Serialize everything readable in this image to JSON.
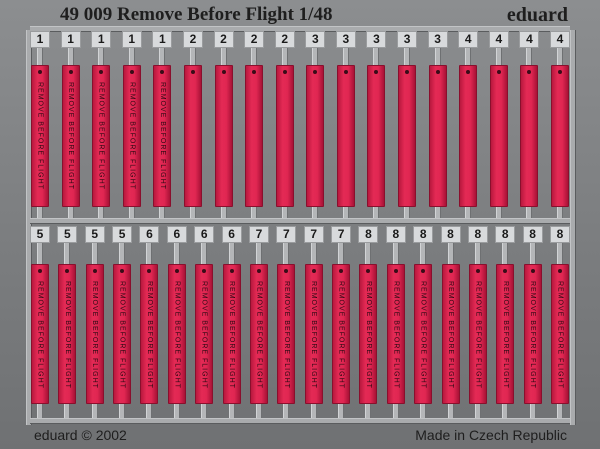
{
  "header": {
    "title": "49 009  Remove Before Flight 1/48",
    "brand": "eduard"
  },
  "footer": {
    "copyright": "eduard © 2002",
    "origin": "Made in Czech Republic"
  },
  "colors": {
    "flag_red": "#e42a55",
    "fret_gray": "#7c7e80"
  },
  "rows": [
    {
      "tags": [
        {
          "number": "1",
          "text": "REMOVE BEFORE FLIGHT"
        },
        {
          "number": "1",
          "text": "REMOVE BEFORE FLIGHT"
        },
        {
          "number": "1",
          "text": "REMOVE BEFORE FLIGHT"
        },
        {
          "number": "1",
          "text": "REMOVE BEFORE FLIGHT"
        },
        {
          "number": "1",
          "text": "REMOVE BEFORE FLIGHT"
        },
        {
          "number": "2",
          "text": ""
        },
        {
          "number": "2",
          "text": ""
        },
        {
          "number": "2",
          "text": ""
        },
        {
          "number": "2",
          "text": ""
        },
        {
          "number": "3",
          "text": ""
        },
        {
          "number": "3",
          "text": ""
        },
        {
          "number": "3",
          "text": ""
        },
        {
          "number": "3",
          "text": ""
        },
        {
          "number": "3",
          "text": ""
        },
        {
          "number": "4",
          "text": ""
        },
        {
          "number": "4",
          "text": ""
        },
        {
          "number": "4",
          "text": ""
        },
        {
          "number": "4",
          "text": ""
        }
      ]
    },
    {
      "tags": [
        {
          "number": "5",
          "text": "REMOVE BEFORE FLIGHT"
        },
        {
          "number": "5",
          "text": "REMOVE BEFORE FLIGHT"
        },
        {
          "number": "5",
          "text": "REMOVE BEFORE FLIGHT"
        },
        {
          "number": "5",
          "text": "REMOVE BEFORE FLIGHT"
        },
        {
          "number": "6",
          "text": "REMOVE BEFORE FLIGHT"
        },
        {
          "number": "6",
          "text": "REMOVE BEFORE FLIGHT"
        },
        {
          "number": "6",
          "text": "REMOVE BEFORE FLIGHT"
        },
        {
          "number": "6",
          "text": "REMOVE BEFORE FLIGHT"
        },
        {
          "number": "7",
          "text": "REMOVE BEFORE FLIGHT"
        },
        {
          "number": "7",
          "text": "REMOVE BEFORE FLIGHT"
        },
        {
          "number": "7",
          "text": "REMOVE BEFORE FLIGHT"
        },
        {
          "number": "7",
          "text": "REMOVE BEFORE FLIGHT"
        },
        {
          "number": "8",
          "text": "REMOVE BEFORE FLIGHT"
        },
        {
          "number": "8",
          "text": "REMOVE BEFORE FLIGHT"
        },
        {
          "number": "8",
          "text": "REMOVE BEFORE FLIGHT"
        },
        {
          "number": "8",
          "text": "REMOVE BEFORE FLIGHT"
        },
        {
          "number": "8",
          "text": "REMOVE BEFORE FLIGHT"
        },
        {
          "number": "8",
          "text": "REMOVE BEFORE FLIGHT"
        },
        {
          "number": "8",
          "text": "REMOVE BEFORE FLIGHT"
        },
        {
          "number": "8",
          "text": "REMOVE BEFORE FLIGHT"
        }
      ]
    }
  ]
}
